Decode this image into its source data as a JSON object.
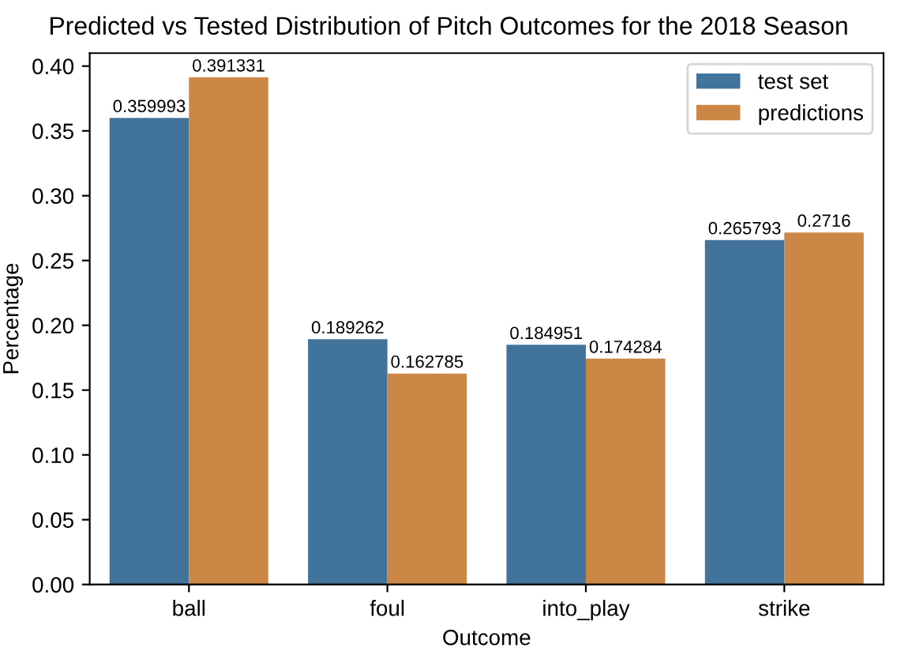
{
  "chart_data": {
    "type": "bar",
    "title": "Predicted vs Tested Distribution of Pitch Outcomes for the 2018 Season",
    "xlabel": "Outcome",
    "ylabel": "Percentage",
    "categories": [
      "ball",
      "foul",
      "into_play",
      "strike"
    ],
    "series": [
      {
        "name": "test set",
        "color": "#42739a",
        "values": [
          0.359993,
          0.189262,
          0.184951,
          0.265793
        ]
      },
      {
        "name": "predictions",
        "color": "#cc8646",
        "values": [
          0.391331,
          0.162785,
          0.174284,
          0.2716
        ]
      }
    ],
    "ylim": [
      0,
      0.41
    ],
    "yticks": [
      {
        "value": 0,
        "label": "0.00"
      },
      {
        "value": 0.05,
        "label": "0.05"
      },
      {
        "value": 0.1,
        "label": "0.10"
      },
      {
        "value": 0.15,
        "label": "0.15"
      },
      {
        "value": 0.2,
        "label": "0.20"
      },
      {
        "value": 0.25,
        "label": "0.25"
      },
      {
        "value": 0.3,
        "label": "0.30"
      },
      {
        "value": 0.35,
        "label": "0.35"
      },
      {
        "value": 0.4,
        "label": "0.40"
      }
    ],
    "data_labels": true,
    "legend": "top right",
    "grid": false
  }
}
